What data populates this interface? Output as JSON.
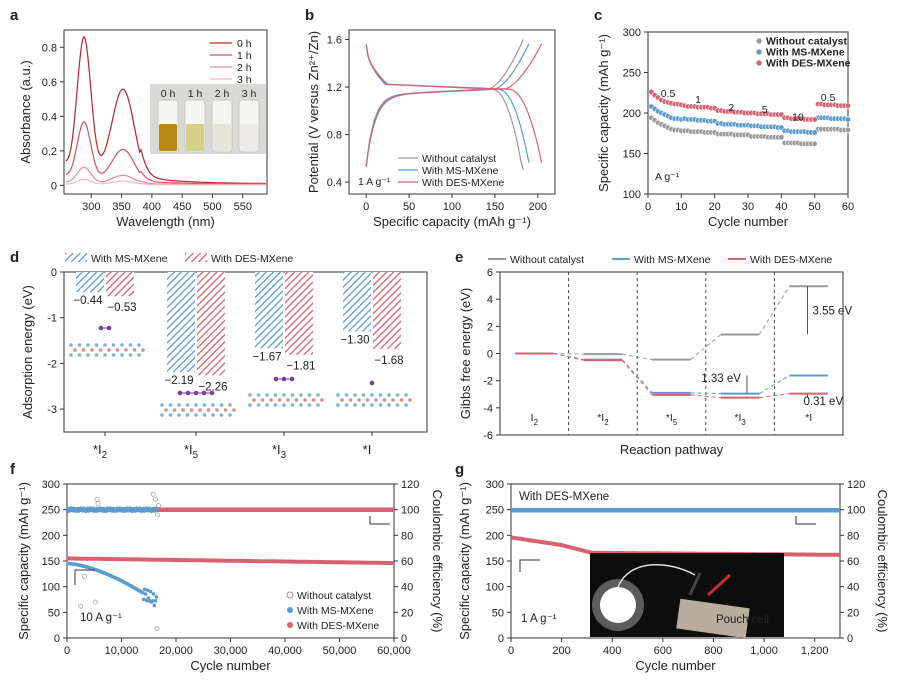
{
  "colors": {
    "gray": "#9a9a9a",
    "blue": "#5b9bd0",
    "red": "#d9606e",
    "darkred": "#c2303a",
    "dark": "#222222"
  },
  "chart_data": [
    {
      "id": "a",
      "letter": "a",
      "type": "line",
      "xlabel": "Wavelength (nm)",
      "ylabel": "Absorbance (a.u.)",
      "xlim": [
        255,
        590
      ],
      "ylim": [
        -0.05,
        0.9
      ],
      "xticks": [
        "300",
        "350",
        "400",
        "450",
        "500",
        "550"
      ],
      "xtick_values": [
        300,
        350,
        400,
        450,
        500,
        550
      ],
      "yticks": [
        "0",
        "0.2",
        "0.4",
        "0.6",
        "0.8"
      ],
      "ytick_values": [
        0,
        0.2,
        0.4,
        0.6,
        0.8
      ],
      "legend": [
        "0 h",
        "1 h",
        "2 h",
        "3 h"
      ],
      "inset_labels": [
        "0 h",
        "1 h",
        "2 h",
        "3 h"
      ],
      "series": [
        {
          "name": "0 h",
          "peak1": 0.8,
          "peak2": 0.52,
          "base": 0.01
        },
        {
          "name": "1 h",
          "peak1": 0.34,
          "peak2": 0.19,
          "base": 0.008
        },
        {
          "name": "2 h",
          "peak1": 0.095,
          "peak2": 0.05,
          "base": 0.005
        },
        {
          "name": "3 h",
          "peak1": 0.03,
          "peak2": 0.02,
          "base": 0.003
        }
      ]
    },
    {
      "id": "b",
      "letter": "b",
      "type": "line",
      "xlabel": "Specific capacity (mAh g⁻¹)",
      "ylabel": "Potential (V versus Zn²⁺/Zn)",
      "xlim": [
        -20,
        220
      ],
      "ylim": [
        0.3,
        1.68
      ],
      "xticks": [
        "0",
        "50",
        "100",
        "150",
        "200"
      ],
      "xtick_values": [
        0,
        50,
        100,
        150,
        200
      ],
      "yticks": [
        "0.4",
        "0.8",
        "1.2",
        "1.6"
      ],
      "ytick_values": [
        0.4,
        0.8,
        1.2,
        1.6
      ],
      "annotation": "1 A g⁻¹",
      "legend": [
        "Without catalyst",
        "With MS-MXene",
        "With DES-MXene"
      ],
      "series": [
        {
          "name": "Without catalyst",
          "capacity": 183
        },
        {
          "name": "With MS-MXene",
          "capacity": 192
        },
        {
          "name": "With DES-MXene",
          "capacity": 207
        }
      ]
    },
    {
      "id": "c",
      "letter": "c",
      "type": "scatter",
      "xlabel": "Cycle number",
      "ylabel": "Specific capacity (mAh g⁻¹)",
      "xlim": [
        0,
        60
      ],
      "ylim": [
        100,
        300
      ],
      "xticks": [
        "0",
        "10",
        "20",
        "30",
        "40",
        "50",
        "60"
      ],
      "xtick_values": [
        0,
        10,
        20,
        30,
        40,
        50,
        60
      ],
      "yticks": [
        "100",
        "150",
        "200",
        "250",
        "300"
      ],
      "ytick_values": [
        100,
        150,
        200,
        250,
        300
      ],
      "annotation": "A g⁻¹",
      "rate_labels": [
        "0.5",
        "1",
        "2",
        "5",
        "10",
        "0.5"
      ],
      "legend": [
        "Without catalyst",
        "With MS-MXene",
        "With DES-MXene"
      ],
      "series": [
        {
          "name": "Without catalyst",
          "values": [
            194,
            191,
            188,
            186,
            184,
            182,
            180,
            179,
            179,
            178,
            178,
            178,
            177,
            177,
            177,
            177,
            176,
            176,
            176,
            176,
            174,
            174,
            174,
            174,
            174,
            173,
            173,
            173,
            173,
            173,
            171,
            171,
            171,
            171,
            171,
            170,
            170,
            170,
            170,
            170,
            163,
            163,
            163,
            163,
            163,
            162,
            162,
            162,
            162,
            162,
            180,
            180,
            180,
            180,
            180,
            180,
            180,
            179,
            179,
            179
          ]
        },
        {
          "name": "With MS-MXene",
          "values": [
            208,
            205,
            202,
            200,
            198,
            196,
            194,
            193,
            193,
            192,
            193,
            192,
            192,
            192,
            191,
            191,
            191,
            190,
            190,
            190,
            187,
            187,
            186,
            186,
            186,
            186,
            185,
            185,
            185,
            185,
            184,
            184,
            184,
            183,
            183,
            183,
            183,
            183,
            182,
            182,
            178,
            178,
            177,
            177,
            177,
            177,
            177,
            176,
            176,
            176,
            194,
            194,
            194,
            194,
            193,
            193,
            193,
            193,
            193,
            192
          ]
        },
        {
          "name": "With DES-MXene",
          "values": [
            226,
            222,
            219,
            216,
            214,
            213,
            212,
            211,
            211,
            210,
            209,
            208,
            208,
            208,
            207,
            207,
            207,
            207,
            206,
            206,
            203,
            203,
            202,
            202,
            202,
            201,
            201,
            201,
            200,
            200,
            200,
            200,
            199,
            199,
            199,
            199,
            198,
            198,
            198,
            198,
            194,
            194,
            193,
            193,
            193,
            193,
            192,
            192,
            192,
            192,
            211,
            211,
            210,
            210,
            210,
            210,
            209,
            209,
            209,
            209
          ]
        }
      ]
    },
    {
      "id": "d",
      "letter": "d",
      "type": "bar",
      "xlabel": "",
      "ylabel": "Adsorption energy (eV)",
      "ylim": [
        -3.5,
        0
      ],
      "yticks": [
        "0",
        "-1",
        "-2",
        "-3"
      ],
      "ytick_values": [
        0,
        -1,
        -2,
        -3
      ],
      "categories": [
        "*I₂",
        "*I₅",
        "*I₃",
        "*I"
      ],
      "cat_main": [
        "*I",
        "*I",
        "*I",
        "*I"
      ],
      "cat_sub": [
        "2",
        "5",
        "3",
        ""
      ],
      "legend": [
        "With MS-MXene",
        "With DES-MXene"
      ],
      "series": [
        {
          "name": "With MS-MXene",
          "values": [
            -0.44,
            -2.19,
            -1.67,
            -1.3
          ],
          "labels": [
            "−0.44",
            "−2.19",
            "−1.67",
            "−1.30"
          ]
        },
        {
          "name": "With DES-MXene",
          "values": [
            -0.53,
            -2.26,
            -1.81,
            -1.68
          ],
          "labels": [
            "−0.53",
            "−2.26",
            "−1.81",
            "−1.68"
          ]
        }
      ]
    },
    {
      "id": "e",
      "letter": "e",
      "type": "line",
      "xlabel": "Reaction pathway",
      "ylabel": "Gibbs free energy (eV)",
      "ylim": [
        -6,
        6
      ],
      "yticks": [
        "6",
        "4",
        "2",
        "0",
        "-2",
        "-4",
        "-6"
      ],
      "ytick_values": [
        6,
        4,
        2,
        0,
        -2,
        -4,
        -6
      ],
      "steps_main": [
        "I",
        "*I",
        "*I",
        "*I",
        "*I"
      ],
      "steps_sub": [
        "2",
        "2",
        "5",
        "3",
        ""
      ],
      "legend": [
        "Without catalyst",
        "With MS-MXene",
        "With DES-MXene"
      ],
      "annotations": [
        "3.55 eV",
        "1.33 eV",
        "0.31 eV"
      ],
      "series": [
        {
          "name": "Without catalyst",
          "values": [
            0,
            -0.05,
            -0.45,
            1.4,
            4.95
          ]
        },
        {
          "name": "With MS-MXene",
          "values": [
            0,
            -0.45,
            -2.9,
            -2.95,
            -1.62
          ]
        },
        {
          "name": "With DES-MXene",
          "values": [
            0,
            -0.5,
            -3.05,
            -3.25,
            -2.95
          ]
        }
      ]
    },
    {
      "id": "f",
      "letter": "f",
      "type": "scatter",
      "xlabel": "Cycle number",
      "ylabel": "Specific capacity (mAh g⁻¹)",
      "ylabel_right": "Coulombic efficiency (%)",
      "xlim": [
        0,
        60000
      ],
      "ylim": [
        0,
        300
      ],
      "ylim_right": [
        0,
        120
      ],
      "xticks": [
        "0",
        "10,000",
        "20,000",
        "30,000",
        "40,000",
        "50,000",
        "60,000"
      ],
      "xtick_values": [
        0,
        10000,
        20000,
        30000,
        40000,
        50000,
        60000
      ],
      "yticks": [
        "0",
        "50",
        "100",
        "150",
        "200",
        "250",
        "300"
      ],
      "ytick_values": [
        0,
        50,
        100,
        150,
        200,
        250,
        300
      ],
      "yticks_right": [
        "0",
        "20",
        "40",
        "60",
        "80",
        "100",
        "120"
      ],
      "annotation": "10 A g⁻¹",
      "legend": [
        "Without catalyst",
        "With MS-MXene",
        "With DES-MXene"
      ],
      "series": [
        {
          "name": "Without catalyst",
          "end_cycle": 6000,
          "capacity_start": 150,
          "capacity_end": 35,
          "ce": 100
        },
        {
          "name": "With MS-MXene",
          "end_cycle": 16500,
          "capacity_start": 145,
          "capacity_end": 70,
          "ce": 100
        },
        {
          "name": "With DES-MXene",
          "end_cycle": 60000,
          "capacity_start": 155,
          "capacity_end": 146,
          "ce": 100
        }
      ]
    },
    {
      "id": "g",
      "letter": "g",
      "type": "scatter",
      "xlabel": "Cycle number",
      "ylabel": "Specific capacity (mAh g⁻¹)",
      "ylabel_right": "Coulombic efficiency (%)",
      "xlim": [
        0,
        1300
      ],
      "ylim": [
        0,
        300
      ],
      "ylim_right": [
        0,
        120
      ],
      "xticks": [
        "0",
        "200",
        "400",
        "600",
        "800",
        "1,000",
        "1,200"
      ],
      "xtick_values": [
        0,
        200,
        400,
        600,
        800,
        1000,
        1200
      ],
      "yticks": [
        "0",
        "50",
        "100",
        "150",
        "200",
        "250",
        "300"
      ],
      "ytick_values": [
        0,
        50,
        100,
        150,
        200,
        250,
        300
      ],
      "yticks_right": [
        "0",
        "20",
        "40",
        "60",
        "80",
        "100",
        "120"
      ],
      "annotation": "1 A g⁻¹",
      "legend_text": "With DES-MXene",
      "photo_label": "Pouch cell",
      "series": [
        {
          "name": "With DES-MXene",
          "capacity_start": 196,
          "capacity_end": 162,
          "ce": 99.5
        }
      ]
    }
  ]
}
